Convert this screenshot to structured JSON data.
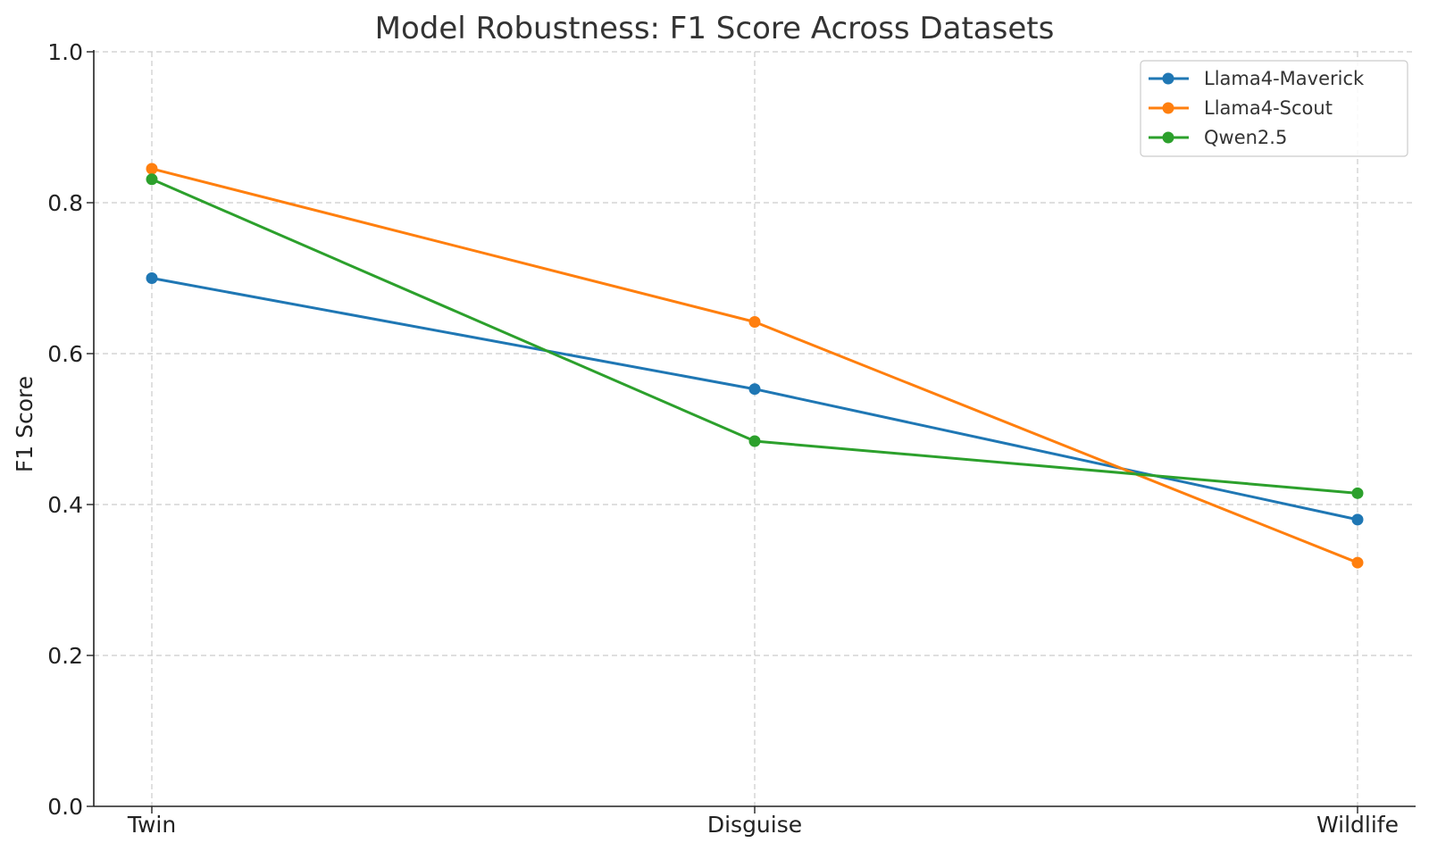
{
  "chart_data": {
    "type": "line",
    "title": "Model Robustness: F1 Score Across Datasets",
    "xlabel": "",
    "ylabel": "F1 Score",
    "categories": [
      "Twin",
      "Disguise",
      "Wildlife"
    ],
    "ylim": [
      0.0,
      1.0
    ],
    "yticks": [
      0.0,
      0.2,
      0.4,
      0.6,
      0.8,
      1.0
    ],
    "ytick_labels": [
      "0.0",
      "0.2",
      "0.4",
      "0.6",
      "0.8",
      "1.0"
    ],
    "grid": true,
    "legend_position": "top-right",
    "series": [
      {
        "name": "Llama4-Maverick",
        "color": "#1f77b4",
        "values": [
          0.7,
          0.553,
          0.38
        ]
      },
      {
        "name": "Llama4-Scout",
        "color": "#ff7f0e",
        "values": [
          0.845,
          0.642,
          0.323
        ]
      },
      {
        "name": "Qwen2.5",
        "color": "#2ca02c",
        "values": [
          0.831,
          0.484,
          0.415
        ]
      }
    ]
  }
}
